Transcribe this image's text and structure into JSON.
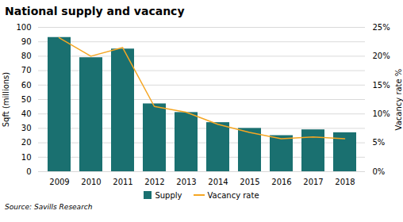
{
  "chart_data": {
    "type": "bar",
    "title": "National supply and vacancy",
    "caption": "Source: Savills Research",
    "categories": [
      "2009",
      "2010",
      "2011",
      "2012",
      "2013",
      "2014",
      "2015",
      "2016",
      "2017",
      "2018"
    ],
    "series": [
      {
        "name": "Supply",
        "type": "bar",
        "color": "#1a7070",
        "values": [
          93,
          79,
          85,
          47,
          41,
          34,
          30,
          25,
          29,
          27
        ]
      },
      {
        "name": "Vacancy rate",
        "type": "line",
        "color": "#f5a623",
        "axis": "y2",
        "values": [
          23.2,
          20.0,
          21.5,
          11.3,
          10.3,
          8.2,
          6.8,
          5.7,
          6.0,
          5.7
        ]
      }
    ],
    "ylabel": "Sqft (millions)",
    "y2label": "Vacancy rate %",
    "ylim": [
      0,
      100
    ],
    "yticks": [
      0,
      10,
      20,
      30,
      40,
      50,
      60,
      70,
      80,
      90,
      100
    ],
    "y2lim": [
      0,
      25
    ],
    "y2ticks": [
      {
        "value": 0,
        "label": "0%"
      },
      {
        "value": 5,
        "label": "5%"
      },
      {
        "value": 10,
        "label": "10%"
      },
      {
        "value": 15,
        "label": "15%"
      },
      {
        "value": 20,
        "label": "20%"
      },
      {
        "value": 25,
        "label": "25%"
      }
    ],
    "grid": true,
    "legend": "bottom"
  }
}
